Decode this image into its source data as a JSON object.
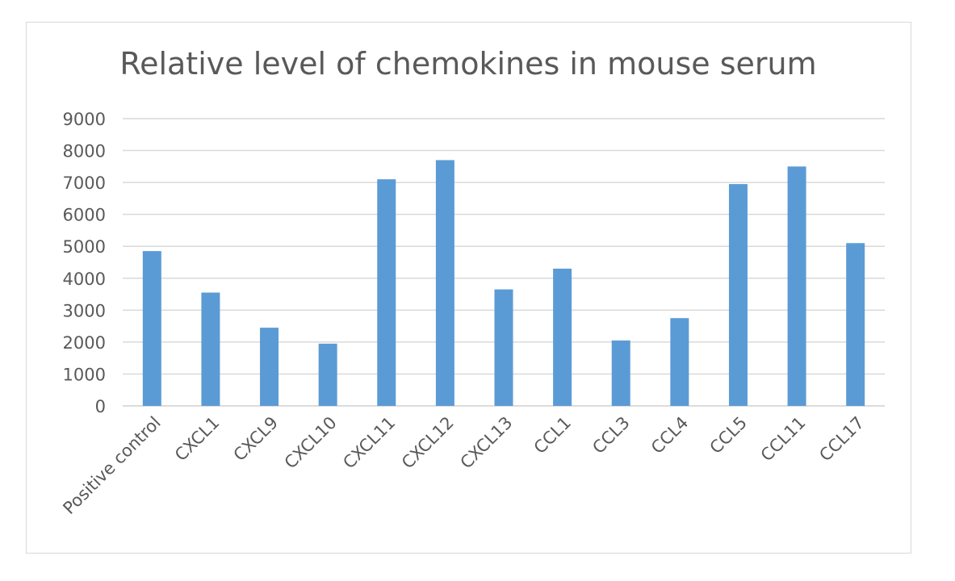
{
  "chart_data": {
    "type": "bar",
    "title": "Relative level of chemokines in mouse serum",
    "categories": [
      "Positive control",
      "CXCL1",
      "CXCL9",
      "CXCL10",
      "CXCL11",
      "CXCL12",
      "CXCL13",
      "CCL1",
      "CCL3",
      "CCL4",
      "CCL5",
      "CCL11",
      "CCL17"
    ],
    "values": [
      4850,
      3550,
      2450,
      1950,
      7100,
      7700,
      3650,
      4300,
      2050,
      2750,
      6950,
      7500,
      5100
    ],
    "ylim": [
      0,
      9000
    ],
    "yticks": [
      "0",
      "1000",
      "2000",
      "3000",
      "4000",
      "5000",
      "6000",
      "7000",
      "8000",
      "9000"
    ],
    "xlabel": "",
    "ylabel": "",
    "grid": true,
    "legend": "none",
    "bar_color": "#5b9bd5"
  }
}
